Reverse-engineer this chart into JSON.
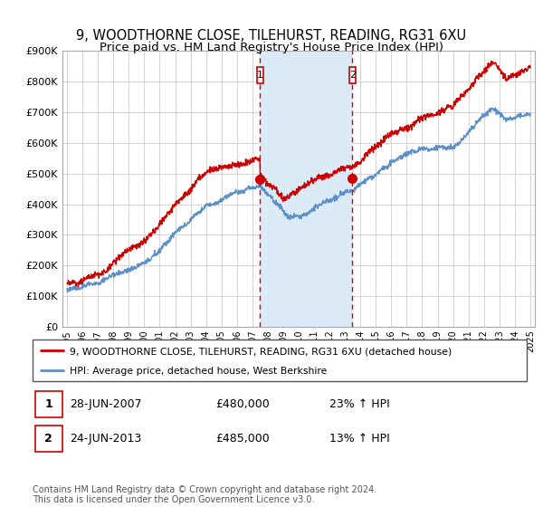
{
  "title": "9, WOODTHORNE CLOSE, TILEHURST, READING, RG31 6XU",
  "subtitle": "Price paid vs. HM Land Registry's House Price Index (HPI)",
  "ylim": [
    0,
    900000
  ],
  "yticks": [
    0,
    100000,
    200000,
    300000,
    400000,
    500000,
    600000,
    700000,
    800000,
    900000
  ],
  "ytick_labels": [
    "£0",
    "£100K",
    "£200K",
    "£300K",
    "£400K",
    "£500K",
    "£600K",
    "£700K",
    "£800K",
    "£900K"
  ],
  "hpi_color": "#5b8fc9",
  "price_color": "#cc0000",
  "shaded_color": "#daeaf7",
  "marker1_date": 2007.49,
  "marker2_date": 2013.48,
  "marker1_price": 480000,
  "marker2_price": 485000,
  "annotation1_text": "28-JUN-2007",
  "annotation2_text": "24-JUN-2013",
  "annotation1_pct": "23% ↑ HPI",
  "annotation2_pct": "13% ↑ HPI",
  "legend_line1": "9, WOODTHORNE CLOSE, TILEHURST, READING, RG31 6XU (detached house)",
  "legend_line2": "HPI: Average price, detached house, West Berkshire",
  "footer": "Contains HM Land Registry data © Crown copyright and database right 2024.\nThis data is licensed under the Open Government Licence v3.0.",
  "background_color": "#ffffff",
  "grid_color": "#cccccc"
}
